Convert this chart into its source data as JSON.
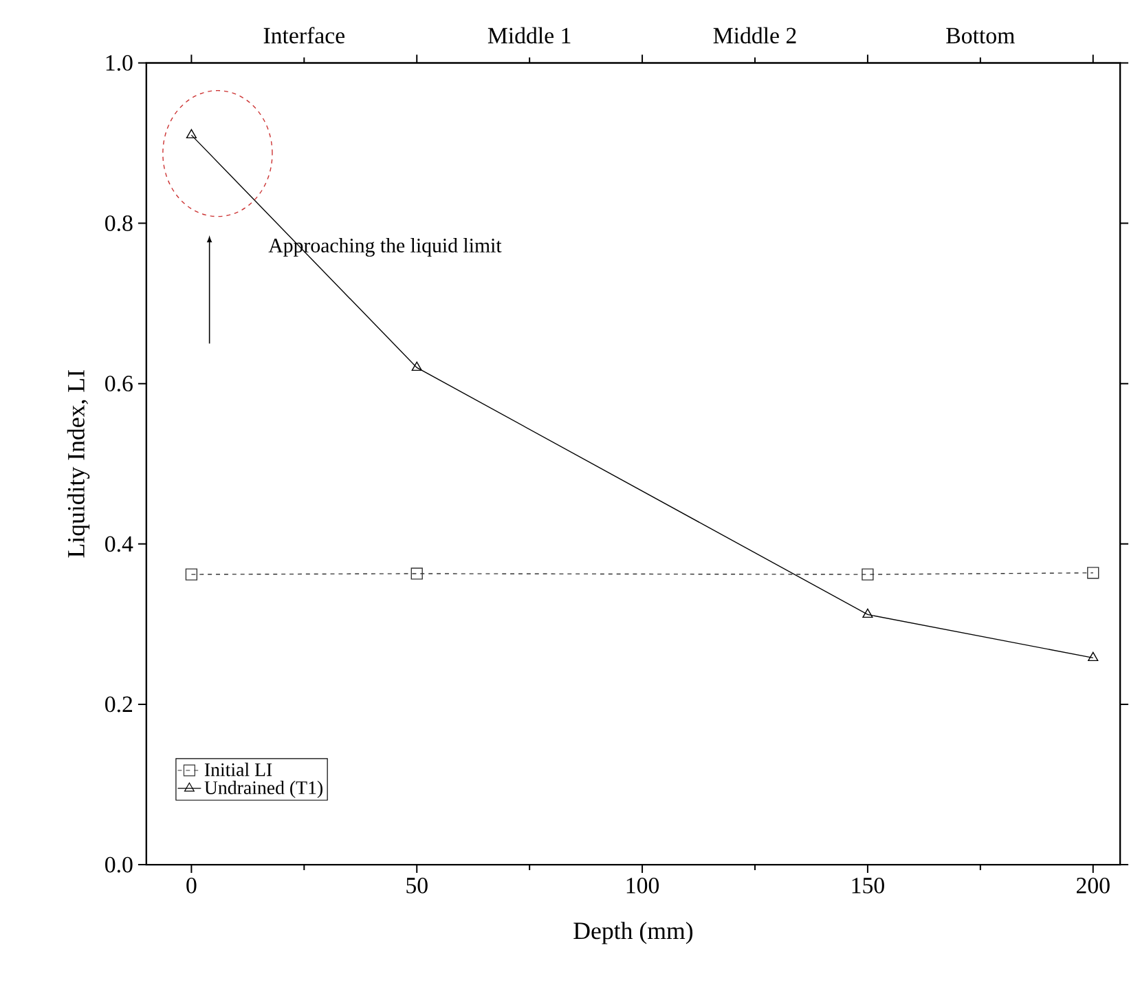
{
  "chart_data": {
    "type": "line",
    "xlabel": "Depth (mm)",
    "ylabel": "Liquidity Index, LI",
    "x": [
      0,
      50,
      150,
      200
    ],
    "series": [
      {
        "name": "Initial LI",
        "color": "#333333",
        "values": [
          0.362,
          0.363,
          0.362,
          0.364
        ],
        "marker": "square",
        "line_style": "dashed"
      },
      {
        "name": "Undrained (T1)",
        "color": "#000000",
        "values": [
          0.91,
          0.62,
          0.312,
          0.258
        ],
        "marker": "triangle",
        "line_style": "solid"
      }
    ],
    "xlim": [
      -10,
      206
    ],
    "xticks": [
      0,
      50,
      100,
      150,
      200,
      {
        "value": 25,
        "label": null
      },
      {
        "value": 75,
        "label": null
      },
      {
        "value": 125,
        "label": null
      },
      {
        "value": 175,
        "label": null
      }
    ],
    "ylim": [
      0,
      1
    ],
    "yticks": [
      {
        "value": 0,
        "label": "0.0"
      },
      {
        "value": 0.2,
        "label": "0.2"
      },
      {
        "value": 0.4,
        "label": "0.4"
      },
      {
        "value": 0.6,
        "label": "0.6"
      },
      {
        "value": 0.8,
        "label": "0.8"
      },
      {
        "value": 1,
        "label": "1.0"
      }
    ],
    "legend": "bottom left",
    "annotations": [
      "Approaching the liquid limit",
      "Interface",
      "Middle 1",
      "Middle 2",
      "Bottom"
    ]
  }
}
